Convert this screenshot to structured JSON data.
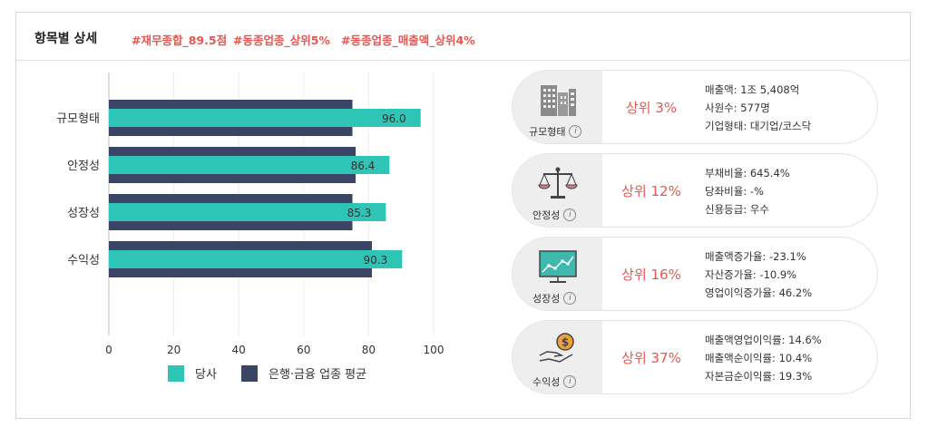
{
  "header": {
    "title": "항목별 상세",
    "tags": [
      "#재무종합_89.5점",
      "#동종업종_상위5%",
      "#동종업종_매출액_상위4%"
    ]
  },
  "colors": {
    "company": "#2ec4b6",
    "industry_avg": "#3a4565",
    "accent": "#e8564f"
  },
  "chart_data": {
    "type": "bar",
    "orientation": "horizontal",
    "categories": [
      "규모형태",
      "안정성",
      "성장성",
      "수익성"
    ],
    "series": [
      {
        "name": "당사",
        "values": [
          96.0,
          86.4,
          85.3,
          90.3
        ],
        "color": "#2ec4b6"
      },
      {
        "name": "은행·금융 업종 평균",
        "values": [
          75,
          76,
          75,
          81
        ],
        "color": "#3a4565"
      }
    ],
    "data_labels": [
      "96.0",
      "86.4",
      "85.3",
      "90.3"
    ],
    "xlim": [
      0,
      100
    ],
    "xticks": [
      "0",
      "20",
      "40",
      "60",
      "80",
      "100"
    ],
    "grid": true,
    "legend_position": "bottom"
  },
  "legend": {
    "company": "당사",
    "industry": "은행·금융 업종 평균"
  },
  "cards": [
    {
      "label": "규모형태",
      "icon": "building-icon",
      "rank": "상위 3%",
      "metrics": [
        "매출액: 1조 5,408억",
        "사원수: 577명",
        "기업형태: 대기업/코스닥"
      ]
    },
    {
      "label": "안정성",
      "icon": "scale-icon",
      "rank": "상위 12%",
      "metrics": [
        "부채비율: 645.4%",
        "당좌비율: -%",
        "신용등급: 우수"
      ]
    },
    {
      "label": "성장성",
      "icon": "growth-chart-icon",
      "rank": "상위 16%",
      "metrics": [
        "매출액증가율: -23.1%",
        "자산증가율: -10.9%",
        "영업이익증가율: 46.2%"
      ]
    },
    {
      "label": "수익성",
      "icon": "coin-hand-icon",
      "rank": "상위 37%",
      "metrics": [
        "매출액영업이익률: 14.6%",
        "매출액순이익률: 10.4%",
        "자본금순이익률: 19.3%"
      ]
    }
  ]
}
